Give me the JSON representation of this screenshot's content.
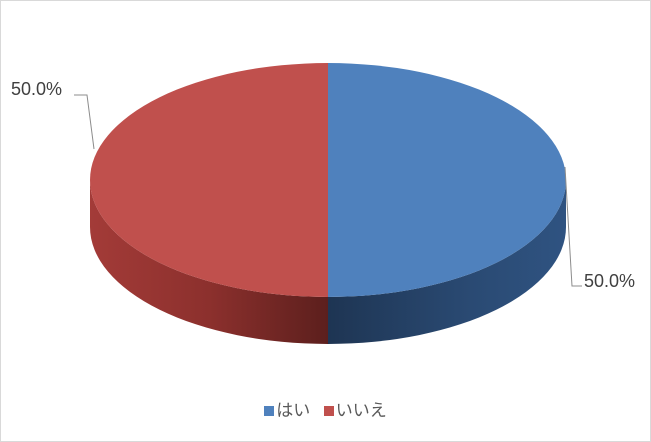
{
  "chart_data": {
    "type": "pie",
    "style": "3d",
    "series": [
      {
        "categories": [
          "はい",
          "いいえ"
        ],
        "values": [
          50.0,
          50.0
        ],
        "data_labels": [
          "50.0%",
          "50.0%"
        ]
      }
    ],
    "colors": [
      "#4f81bd",
      "#c0504d"
    ],
    "legend": {
      "position": "bottom",
      "items": [
        {
          "label": "はい",
          "color": "#4f81bd"
        },
        {
          "label": "いいえ",
          "color": "#c0504d"
        }
      ]
    }
  }
}
